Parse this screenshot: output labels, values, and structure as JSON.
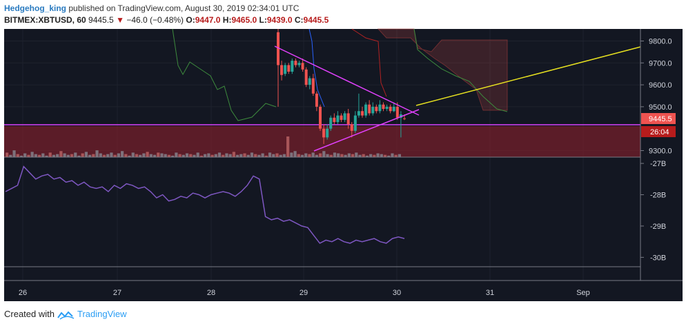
{
  "header": {
    "author": "Hedgehog_king",
    "published_text": "published on TradingView.com, August 30, 2019 02:34:01 UTC",
    "symbol": "BITMEX:XBTUSD, 60",
    "price": "9445.5",
    "change": "−46.0 (−0.48%)",
    "ohlc": {
      "o_label": "O:",
      "o": "9447.0",
      "h_label": "H:",
      "h": "9465.0",
      "l_label": "L:",
      "l": "9439.0",
      "c_label": "C:",
      "c": "9445.5"
    }
  },
  "footer": {
    "created_with": "Created with",
    "brand": "TradingView"
  },
  "colors": {
    "background": "#131722",
    "up": "#26a69a",
    "down": "#ef5350",
    "triangle": "#e040fb",
    "trendline": "#e6e020",
    "indicator": "#7e57c2",
    "price_badge": "#ef5350"
  },
  "chart_data": [
    {
      "type": "candlestick",
      "title": "",
      "y_axis_ticks": [
        "9800.0",
        "9700.0",
        "9600.0",
        "9500.0",
        "9300.0"
      ],
      "y_axis_values": [
        9800,
        9700,
        9600,
        9500,
        9300
      ],
      "ylim": [
        9270,
        9855
      ],
      "x_axis_ticks": [
        "26",
        "27",
        "28",
        "29",
        "30",
        "31",
        "Sep"
      ],
      "last_price_label": "9445.5",
      "last_price": 9445.5,
      "countdown_label": "26:04",
      "candles": [
        {
          "o": 9840,
          "c": 9690,
          "h": 9870,
          "l": 9500
        },
        {
          "o": 9690,
          "c": 9645,
          "h": 9710,
          "l": 9620
        },
        {
          "o": 9650,
          "c": 9690,
          "h": 9700,
          "l": 9640
        },
        {
          "o": 9690,
          "c": 9660,
          "h": 9700,
          "l": 9650
        },
        {
          "o": 9660,
          "c": 9710,
          "h": 9720,
          "l": 9650
        },
        {
          "o": 9710,
          "c": 9690,
          "h": 9720,
          "l": 9680
        },
        {
          "o": 9690,
          "c": 9700,
          "h": 9710,
          "l": 9680
        },
        {
          "o": 9700,
          "c": 9670,
          "h": 9720,
          "l": 9660
        },
        {
          "o": 9670,
          "c": 9600,
          "h": 9680,
          "l": 9590
        },
        {
          "o": 9600,
          "c": 9630,
          "h": 9640,
          "l": 9580
        },
        {
          "o": 9630,
          "c": 9560,
          "h": 9650,
          "l": 9550
        },
        {
          "o": 9560,
          "c": 9500,
          "h": 9570,
          "l": 9480
        },
        {
          "o": 9500,
          "c": 9400,
          "h": 9510,
          "l": 9390
        },
        {
          "o": 9400,
          "c": 9360,
          "h": 9420,
          "l": 9330
        },
        {
          "o": 9360,
          "c": 9400,
          "h": 9420,
          "l": 9350
        },
        {
          "o": 9400,
          "c": 9450,
          "h": 9460,
          "l": 9390
        },
        {
          "o": 9450,
          "c": 9430,
          "h": 9470,
          "l": 9420
        },
        {
          "o": 9430,
          "c": 9460,
          "h": 9480,
          "l": 9420
        },
        {
          "o": 9460,
          "c": 9440,
          "h": 9470,
          "l": 9430
        },
        {
          "o": 9440,
          "c": 9470,
          "h": 9480,
          "l": 9430
        },
        {
          "o": 9470,
          "c": 9420,
          "h": 9490,
          "l": 9400
        },
        {
          "o": 9420,
          "c": 9390,
          "h": 9430,
          "l": 9360
        },
        {
          "o": 9390,
          "c": 9460,
          "h": 9480,
          "l": 9380
        },
        {
          "o": 9460,
          "c": 9480,
          "h": 9560,
          "l": 9450
        },
        {
          "o": 9480,
          "c": 9460,
          "h": 9500,
          "l": 9450
        },
        {
          "o": 9460,
          "c": 9510,
          "h": 9520,
          "l": 9450
        },
        {
          "o": 9510,
          "c": 9470,
          "h": 9530,
          "l": 9460
        },
        {
          "o": 9470,
          "c": 9500,
          "h": 9520,
          "l": 9460
        },
        {
          "o": 9500,
          "c": 9480,
          "h": 9510,
          "l": 9470
        },
        {
          "o": 9480,
          "c": 9510,
          "h": 9530,
          "l": 9470
        },
        {
          "o": 9510,
          "c": 9490,
          "h": 9520,
          "l": 9480
        },
        {
          "o": 9490,
          "c": 9500,
          "h": 9510,
          "l": 9480
        },
        {
          "o": 9500,
          "c": 9480,
          "h": 9510,
          "l": 9470
        },
        {
          "o": 9480,
          "c": 9500,
          "h": 9520,
          "l": 9475
        },
        {
          "o": 9500,
          "c": 9450,
          "h": 9520,
          "l": 9440
        },
        {
          "o": 9450,
          "c": 9465,
          "h": 9480,
          "l": 9360
        },
        {
          "o": 9447,
          "c": 9445.5,
          "h": 9465,
          "l": 9439
        }
      ],
      "volume": [
        6,
        3,
        9,
        4,
        2,
        5,
        3,
        7,
        4,
        3,
        5,
        2,
        6,
        3,
        4,
        8,
        5,
        3,
        4,
        6,
        2,
        5,
        7,
        3,
        4,
        9,
        5,
        3,
        4,
        6,
        3,
        5,
        8,
        4,
        2,
        6,
        4,
        3,
        5,
        7,
        4,
        3,
        6,
        5,
        4,
        3,
        2,
        6,
        4,
        3,
        5,
        4,
        3,
        6,
        2,
        4,
        5,
        3,
        4,
        6,
        3,
        5,
        4,
        7,
        3,
        4,
        5,
        3,
        6,
        4,
        3,
        5,
        2,
        6,
        4,
        5,
        3,
        4,
        30,
        6,
        8,
        4,
        3,
        5,
        4,
        6,
        3,
        5,
        8,
        4,
        3,
        6,
        5,
        4,
        3,
        5,
        4,
        6,
        3,
        4,
        2,
        4,
        3,
        5,
        4,
        3,
        2,
        5,
        3,
        4
      ]
    },
    {
      "type": "line",
      "title": "",
      "y_axis_ticks": [
        "-27B",
        "-28B",
        "-29B",
        "-30B"
      ],
      "y_axis_values": [
        -27,
        -28,
        -29,
        -30
      ],
      "ylim": [
        -30.3,
        -26.8
      ],
      "values": [
        -27.9,
        -27.8,
        -27.7,
        -27.1,
        -27.3,
        -27.5,
        -27.4,
        -27.35,
        -27.5,
        -27.45,
        -27.6,
        -27.55,
        -27.7,
        -27.6,
        -27.75,
        -27.8,
        -27.75,
        -27.9,
        -27.7,
        -27.8,
        -27.65,
        -27.7,
        -27.8,
        -27.75,
        -27.9,
        -28.1,
        -28.0,
        -28.2,
        -28.15,
        -28.05,
        -28.1,
        -27.95,
        -28.0,
        -28.1,
        -28.0,
        -27.95,
        -27.9,
        -27.95,
        -28.05,
        -27.9,
        -27.7,
        -27.4,
        -27.5,
        -28.7,
        -28.8,
        -28.75,
        -28.85,
        -28.8,
        -28.9,
        -29.0,
        -29.05,
        -29.3,
        -29.55,
        -29.45,
        -29.5,
        -29.4,
        -29.5,
        -29.55,
        -29.45,
        -29.5,
        -29.45,
        -29.4,
        -29.5,
        -29.55,
        -29.4,
        -29.35,
        -29.4
      ]
    }
  ]
}
